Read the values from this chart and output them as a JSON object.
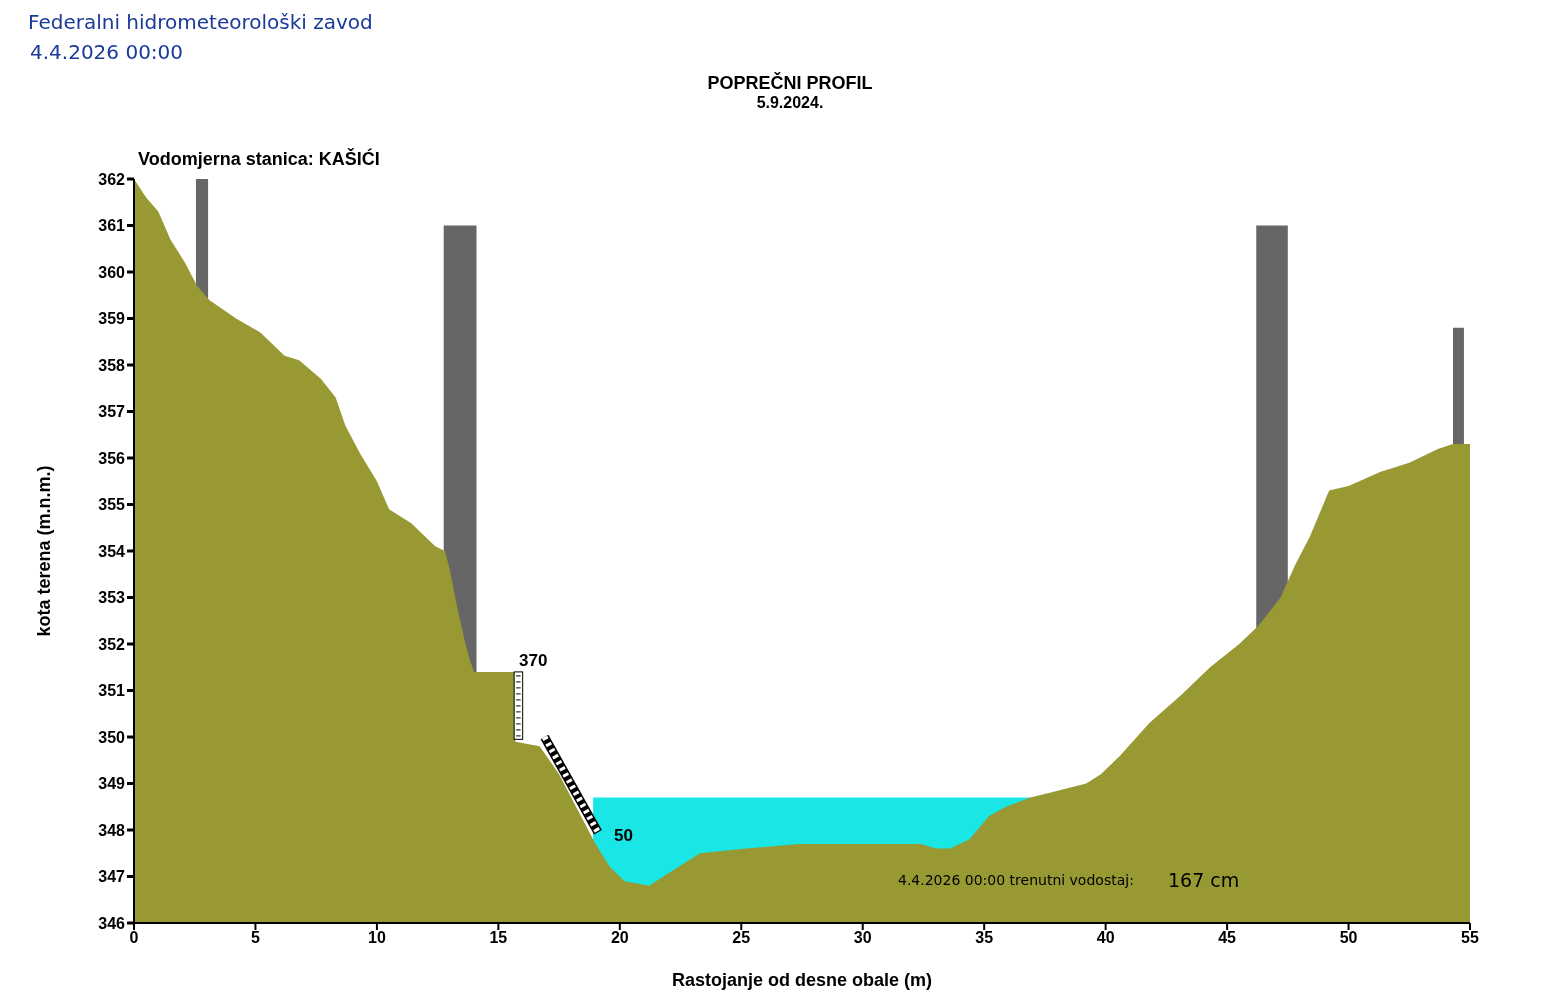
{
  "chart_data": {
    "type": "area",
    "title": "POPREČNI PROFIL",
    "subtitle": "5.9.2024.",
    "xlabel": "Rastojanje od desne obale (m)",
    "ylabel": "kota terena (m.n.m.)",
    "annotations": [
      "Federalni hidrometeorološki zavod",
      "4.4.2026 00:00",
      "Vodomjerna stanica: KAŠIĆI",
      "370",
      "50",
      "4.4.2026 00:00 trenutni vodostaj:",
      "167 cm"
    ],
    "xlim": [
      0,
      55
    ],
    "xticks": [
      0,
      5,
      10,
      15,
      20,
      25,
      30,
      35,
      40,
      45,
      50,
      55
    ],
    "ylim": [
      346,
      362
    ],
    "yticks": [
      346,
      347,
      348,
      349,
      350,
      351,
      352,
      353,
      354,
      355,
      356,
      357,
      358,
      359,
      360,
      361,
      362
    ],
    "series": [
      {
        "color": "#666666",
        "x": [
          2.55,
          3.05
        ],
        "values": [
          362,
          362
        ]
      },
      {
        "color": "#666666",
        "x": [
          12.75,
          14.1
        ],
        "values": [
          361,
          361
        ]
      },
      {
        "color": "#666666",
        "x": [
          46.2,
          47.5
        ],
        "values": [
          361,
          361
        ]
      },
      {
        "color": "#666666",
        "x": [
          54.3,
          54.75
        ],
        "values": [
          358.8,
          358.8
        ]
      },
      {
        "color": "#1ae6e6",
        "x": [
          18.9,
          36.9
        ],
        "values": [
          348.7,
          348.7
        ]
      },
      {
        "color": "#999933",
        "x": [
          0,
          0.5,
          1,
          1.5,
          2.1,
          2.6,
          3.1,
          4.2,
          5.2,
          6.2,
          6.8,
          7.7,
          8.3,
          8.7,
          9.3,
          10.0,
          10.5,
          11.4,
          12.4,
          12.8,
          13.0,
          13.3,
          13.6,
          13.8,
          14.0,
          15.7,
          15.7,
          16.7,
          17.5,
          18.3,
          19.0,
          19.6,
          20.2,
          21.2,
          22.1,
          23.3,
          25.2,
          27.4,
          32.4,
          33.0,
          33.6,
          34.4,
          35.2,
          35.9,
          36.9,
          37.7,
          39.2,
          39.8,
          40.6,
          41.8,
          43.1,
          44.3,
          45.5,
          46.3,
          47.2,
          47.8,
          48.4,
          49.2,
          50.0,
          51.3,
          52.5,
          53.7,
          54.3,
          55
        ],
        "values": [
          362,
          361.6,
          361.3,
          360.7,
          360.2,
          359.7,
          359.4,
          359.0,
          358.7,
          358.2,
          358.1,
          357.7,
          357.3,
          356.7,
          356.1,
          355.5,
          354.9,
          354.6,
          354.1,
          354.0,
          353.6,
          352.8,
          352.1,
          351.7,
          351.4,
          351.4,
          349.9,
          349.8,
          349.2,
          348.4,
          347.7,
          347.2,
          346.9,
          346.8,
          347.1,
          347.5,
          347.6,
          347.7,
          347.7,
          347.6,
          347.6,
          347.8,
          348.3,
          348.5,
          348.7,
          348.8,
          349.0,
          349.2,
          349.6,
          350.3,
          350.9,
          351.5,
          352.0,
          352.4,
          353.0,
          353.7,
          354.3,
          355.3,
          355.4,
          355.7,
          355.9,
          356.2,
          356.3,
          356.3
        ]
      }
    ]
  }
}
